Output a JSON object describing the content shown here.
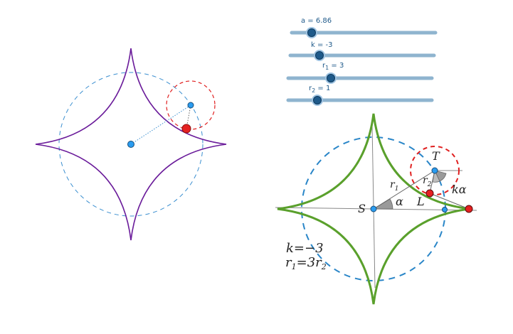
{
  "sliders": [
    {
      "id": "a",
      "label": "a = 6.86",
      "value": 6.86
    },
    {
      "id": "k",
      "label": "k = -3",
      "value": -3
    },
    {
      "id": "r1",
      "label_main": "r",
      "label_sub": "1",
      "label_rest": " = 3",
      "value": 3
    },
    {
      "id": "r2",
      "label_main": "r",
      "label_sub": "2",
      "label_rest": " = 1",
      "value": 1
    }
  ],
  "figure_labels": {
    "S": "S",
    "T": "T",
    "L": "L",
    "alpha": "α",
    "k_alpha": "kα",
    "r1_main": "r",
    "r1_sub": "1",
    "r2_main": "r",
    "r2_sub": "2"
  },
  "legend": {
    "line1": "k=−3",
    "line2_a": "r",
    "line2_a_sub": "1",
    "line2_eq": "=3",
    "line2_b": "r",
    "line2_b_sub": "2"
  },
  "colors": {
    "slider_track": "#8fb4cf",
    "slider_knob_fill": "#1f5a8a",
    "slider_knob_halo": "#9ec3e2",
    "astroid_left": "#6a1b9a",
    "astroid_right": "#5aa02c",
    "dashed_circle": "#3b8fd0",
    "red_circle": "#e02020",
    "point_blue": "#2a9cf0",
    "point_red": "#e52121"
  }
}
